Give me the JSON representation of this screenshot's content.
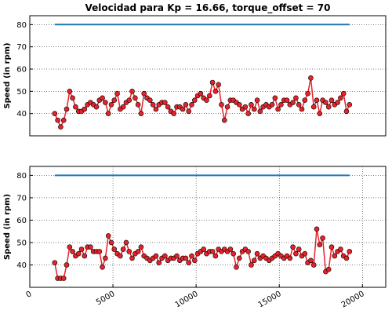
{
  "chart_data": [
    {
      "type": "line",
      "title": "Velocidad para Kp = 16.66, torque_offset = 70",
      "ylabel": "Speed (in rpm)",
      "xlim": [
        0,
        21400
      ],
      "ylim": [
        30,
        84
      ],
      "yticks": [
        40,
        50,
        60,
        70,
        80
      ],
      "grid": true,
      "series": [
        {
          "color": "#1f77b4",
          "marker": false,
          "x": [
            1500,
            19221
          ],
          "values": [
            80,
            80
          ]
        },
        {
          "color": "#e8222a",
          "marker": true,
          "x": [
            1500,
            1679,
            1858,
            2037,
            2216,
            2395,
            2574,
            2753,
            2932,
            3111,
            3290,
            3469,
            3648,
            3827,
            4006,
            4185,
            4364,
            4543,
            4722,
            4901,
            5080,
            5259,
            5438,
            5617,
            5796,
            5975,
            6154,
            6333,
            6512,
            6691,
            6870,
            7049,
            7228,
            7407,
            7586,
            7765,
            7944,
            8123,
            8302,
            8481,
            8660,
            8839,
            9018,
            9197,
            9376,
            9555,
            9734,
            9913,
            10092,
            10271,
            10450,
            10629,
            10808,
            10987,
            11166,
            11345,
            11524,
            11703,
            11882,
            12061,
            12240,
            12419,
            12598,
            12777,
            12956,
            13135,
            13314,
            13493,
            13672,
            13851,
            14030,
            14209,
            14388,
            14567,
            14746,
            14925,
            15104,
            15283,
            15462,
            15641,
            15820,
            15999,
            16178,
            16357,
            16536,
            16715,
            16894,
            17073,
            17252,
            17431,
            17610,
            17789,
            17968,
            18147,
            18326,
            18505,
            18684,
            18863,
            19042,
            19221
          ],
          "values": [
            40,
            37,
            34,
            37,
            42,
            50,
            47,
            43,
            41,
            41,
            42,
            44,
            45,
            44,
            43,
            46,
            47,
            45,
            40,
            44,
            46,
            49,
            42,
            43,
            45,
            46,
            50,
            47,
            44,
            40,
            49,
            47,
            46,
            44,
            42,
            44,
            45,
            45,
            43,
            41,
            40,
            43,
            43,
            42,
            44,
            41,
            44,
            46,
            48,
            49,
            47,
            46,
            48,
            54,
            50,
            53,
            44,
            37,
            43,
            46,
            46,
            45,
            44,
            42,
            43,
            40,
            44,
            42,
            46,
            41,
            43,
            44,
            43,
            44,
            47,
            42,
            44,
            46,
            46,
            44,
            45,
            47,
            44,
            42,
            46,
            49,
            56,
            43,
            46,
            40,
            46,
            45,
            43,
            46,
            44,
            45,
            47,
            49,
            41,
            44
          ]
        }
      ]
    },
    {
      "type": "line",
      "ylabel": "Speed (in rpm)",
      "xlim": [
        0,
        21400
      ],
      "ylim": [
        30,
        84
      ],
      "yticks": [
        40,
        50,
        60,
        70,
        80
      ],
      "xticks": [
        0,
        5000,
        10000,
        15000,
        20000
      ],
      "grid": true,
      "series": [
        {
          "color": "#1f77b4",
          "marker": false,
          "x": [
            1500,
            19221
          ],
          "values": [
            80,
            80
          ]
        },
        {
          "color": "#e8222a",
          "marker": true,
          "x": [
            1500,
            1679,
            1858,
            2037,
            2216,
            2395,
            2574,
            2753,
            2932,
            3111,
            3290,
            3469,
            3648,
            3827,
            4006,
            4185,
            4364,
            4543,
            4722,
            4901,
            5080,
            5259,
            5438,
            5617,
            5796,
            5975,
            6154,
            6333,
            6512,
            6691,
            6870,
            7049,
            7228,
            7407,
            7586,
            7765,
            7944,
            8123,
            8302,
            8481,
            8660,
            8839,
            9018,
            9197,
            9376,
            9555,
            9734,
            9913,
            10092,
            10271,
            10450,
            10629,
            10808,
            10987,
            11166,
            11345,
            11524,
            11703,
            11882,
            12061,
            12240,
            12419,
            12598,
            12777,
            12956,
            13135,
            13314,
            13493,
            13672,
            13851,
            14030,
            14209,
            14388,
            14567,
            14746,
            14925,
            15104,
            15283,
            15462,
            15641,
            15820,
            15999,
            16178,
            16357,
            16536,
            16715,
            16894,
            17073,
            17252,
            17431,
            17610,
            17789,
            17968,
            18147,
            18326,
            18505,
            18684,
            18863,
            19042,
            19221
          ],
          "values": [
            41,
            34,
            34,
            34,
            40,
            48,
            46,
            44,
            45,
            47,
            44,
            48,
            48,
            46,
            46,
            46,
            39,
            43,
            53,
            50,
            47,
            45,
            44,
            47,
            50,
            46,
            43,
            45,
            46,
            48,
            44,
            43,
            42,
            43,
            44,
            41,
            43,
            44,
            42,
            43,
            43,
            44,
            42,
            43,
            43,
            41,
            44,
            42,
            45,
            46,
            47,
            45,
            46,
            46,
            44,
            47,
            46,
            47,
            46,
            47,
            45,
            39,
            43,
            46,
            47,
            46,
            40,
            42,
            45,
            43,
            44,
            43,
            42,
            43,
            44,
            45,
            44,
            43,
            44,
            43,
            48,
            45,
            47,
            44,
            45,
            41,
            42,
            40,
            56,
            49,
            52,
            37,
            38,
            48,
            44,
            46,
            47,
            44,
            43,
            46
          ]
        }
      ]
    }
  ]
}
